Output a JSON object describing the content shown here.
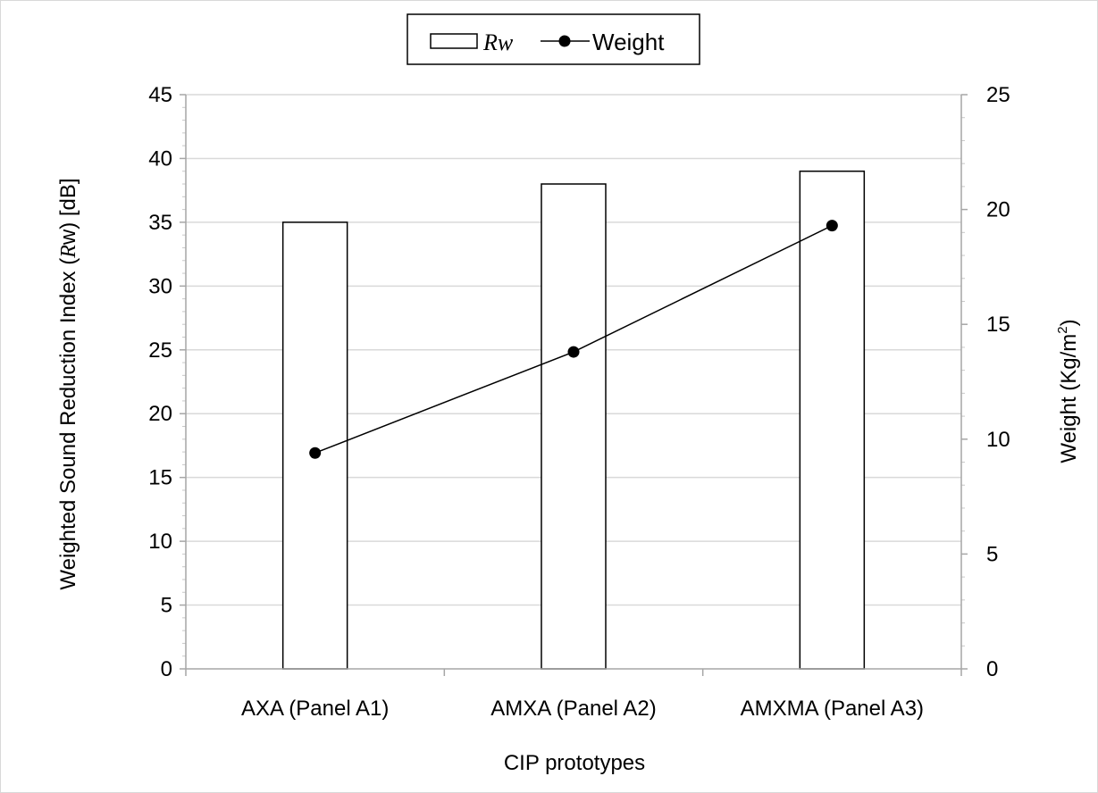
{
  "chart_data": {
    "type": "bar",
    "categories": [
      "AXA (Panel  A1)",
      "AMXA (Panel  A2)",
      "AMXMA (Panel  A3)"
    ],
    "xlabel": "CIP prototypes",
    "ylabel_prefix": "Weighted Sound Reduction Index (",
    "ylabel_italic": "R",
    "ylabel_suffix": "w) [dB]",
    "y2label_main": "Weight (Kg/m",
    "y2label_sup": "2",
    "y2label_end": ")",
    "ylim": [
      0,
      45
    ],
    "y2lim": [
      0,
      25
    ],
    "yticks": [
      "0",
      "5",
      "10",
      "15",
      "20",
      "25",
      "30",
      "35",
      "40",
      "45"
    ],
    "y2ticks": [
      "0",
      "5",
      "10",
      "15",
      "20",
      "25"
    ],
    "grid": true,
    "legend_position": "top-center",
    "series": [
      {
        "name": "Rw",
        "type": "bar",
        "axis": "left",
        "values": [
          35,
          38,
          39
        ],
        "fill": "#ffffff",
        "stroke": "#000000"
      },
      {
        "name": "Weight",
        "type": "line",
        "axis": "right",
        "values": [
          9.4,
          13.8,
          19.3
        ],
        "color": "#000000"
      }
    ]
  }
}
